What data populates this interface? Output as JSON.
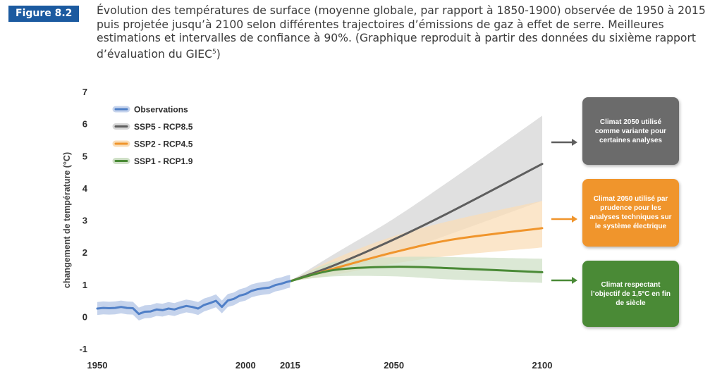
{
  "figure": {
    "label": "Figure 8.2",
    "caption": "Évolution des températures de surface (moyenne globale, par rapport à 1850-1900) observée de 1950 à 2015 puis projetée jusqu’à 2100 selon différentes trajectoires d’émissions de gaz à effet de serre. Meilleures estimations et intervalles de confiance à 90%. (Graphique reproduit à partir des données du sixième rapport d’évaluation du GIEC",
    "caption_note": "5",
    "caption_end": ")"
  },
  "colors": {
    "observations": "#4f7fc7",
    "observations_band": "#c5d3ec",
    "ssp5": "#5e5e5e",
    "ssp5_band": "#d6d6d6",
    "ssp2": "#f0952c",
    "ssp2_band": "#f9ddb8",
    "ssp1": "#4a8a36",
    "ssp1_band": "#cfe0c7",
    "figure_badge": "#1b5aa0"
  },
  "callouts": {
    "gray": "Climat 2050 utilisé comme variante pour certaines analyses",
    "orange": "Climat 2050 utilisé par prudence pour les analyses techniques sur le système électrique",
    "green": "Climat respectant l’objectif de 1,5°C en fin de siècle"
  },
  "chart_data": {
    "type": "line",
    "title": "",
    "xlabel": "",
    "ylabel": "changement de température (°C)",
    "xlim": [
      1950,
      2100
    ],
    "ylim": [
      -1,
      7
    ],
    "x_ticks": [
      1950,
      2000,
      2015,
      2050,
      2100
    ],
    "y_ticks": [
      -1,
      0,
      1,
      2,
      3,
      4,
      5,
      6,
      7
    ],
    "grid": false,
    "legend_position": "top-left",
    "series": [
      {
        "name": "Observations",
        "x": [
          1950,
          1952,
          1954,
          1956,
          1958,
          1960,
          1962,
          1964,
          1966,
          1968,
          1970,
          1972,
          1974,
          1976,
          1978,
          1980,
          1982,
          1984,
          1986,
          1988,
          1990,
          1992,
          1994,
          1996,
          1998,
          2000,
          2002,
          2004,
          2006,
          2008,
          2010,
          2012,
          2014,
          2015
        ],
        "values": [
          0.25,
          0.27,
          0.26,
          0.27,
          0.3,
          0.27,
          0.26,
          0.08,
          0.15,
          0.16,
          0.22,
          0.2,
          0.25,
          0.22,
          0.28,
          0.33,
          0.3,
          0.25,
          0.36,
          0.42,
          0.49,
          0.3,
          0.5,
          0.55,
          0.65,
          0.7,
          0.8,
          0.85,
          0.88,
          0.9,
          0.98,
          1.02,
          1.08,
          1.1
        ],
        "band_lower": [
          0.05,
          0.07,
          0.06,
          0.07,
          0.1,
          0.07,
          0.06,
          -0.12,
          -0.05,
          -0.04,
          0.02,
          0.0,
          0.05,
          0.02,
          0.08,
          0.13,
          0.1,
          0.05,
          0.16,
          0.22,
          0.29,
          0.1,
          0.3,
          0.35,
          0.45,
          0.5,
          0.6,
          0.65,
          0.68,
          0.7,
          0.78,
          0.82,
          0.88,
          0.9
        ],
        "band_upper": [
          0.45,
          0.47,
          0.46,
          0.47,
          0.5,
          0.47,
          0.46,
          0.28,
          0.35,
          0.36,
          0.42,
          0.4,
          0.45,
          0.42,
          0.48,
          0.53,
          0.5,
          0.45,
          0.56,
          0.62,
          0.69,
          0.5,
          0.7,
          0.75,
          0.85,
          0.9,
          1.0,
          1.05,
          1.08,
          1.1,
          1.18,
          1.22,
          1.28,
          1.3
        ]
      },
      {
        "name": "SSP5 - RCP8.5",
        "x": [
          2015,
          2030,
          2050,
          2070,
          2100
        ],
        "values": [
          1.1,
          1.6,
          2.4,
          3.3,
          4.75
        ],
        "band_lower": [
          1.1,
          1.4,
          1.95,
          2.6,
          3.6
        ],
        "band_upper": [
          1.1,
          1.95,
          3.05,
          4.3,
          6.25
        ]
      },
      {
        "name": "SSP2 - RCP4.5",
        "x": [
          2015,
          2030,
          2050,
          2070,
          2100
        ],
        "values": [
          1.1,
          1.5,
          2.0,
          2.4,
          2.75
        ],
        "band_lower": [
          1.1,
          1.3,
          1.65,
          1.9,
          2.15
        ],
        "band_upper": [
          1.1,
          1.8,
          2.5,
          3.0,
          3.6
        ]
      },
      {
        "name": "SSP1 - RCP1.9",
        "x": [
          2015,
          2030,
          2050,
          2070,
          2100
        ],
        "values": [
          1.1,
          1.45,
          1.55,
          1.5,
          1.38
        ],
        "band_lower": [
          1.1,
          1.25,
          1.25,
          1.15,
          1.05
        ],
        "band_upper": [
          1.1,
          1.7,
          1.85,
          1.85,
          1.8
        ]
      }
    ]
  }
}
